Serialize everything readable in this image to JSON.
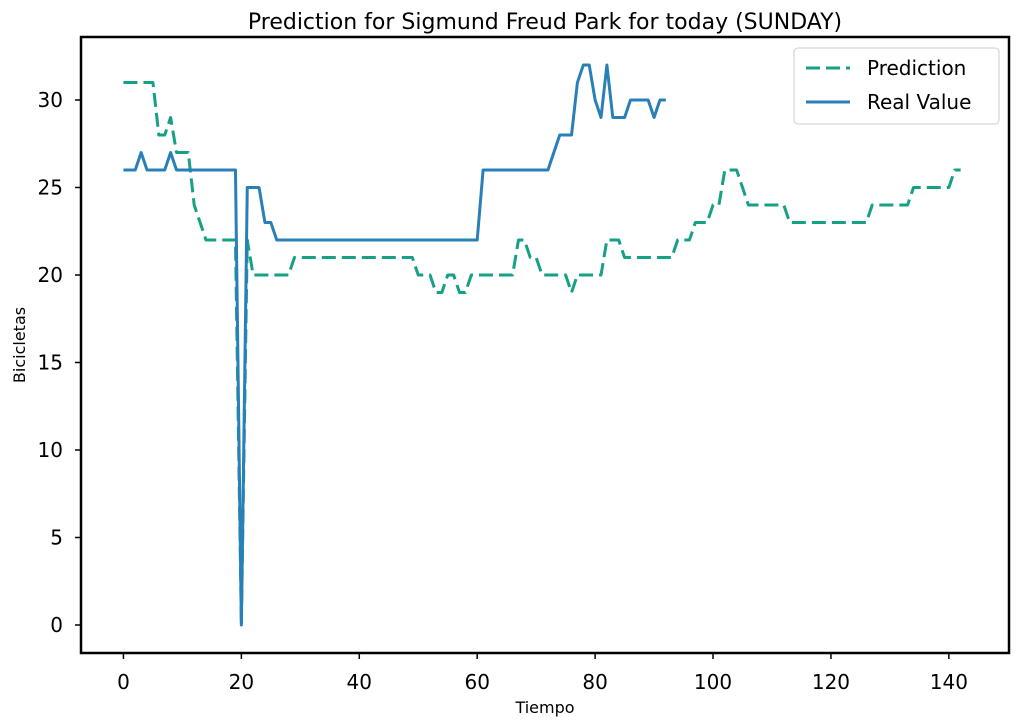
{
  "chart_data": {
    "type": "line",
    "title": "Prediction for Sigmund Freud Park for today (SUNDAY)",
    "xlabel": "Tiempo",
    "ylabel": "Bicicletas",
    "xlim": [
      -7.2,
      150.2
    ],
    "ylim": [
      -1.6,
      33.6
    ],
    "xticks": [
      0,
      20,
      40,
      60,
      80,
      100,
      120,
      140
    ],
    "yticks": [
      0,
      5,
      10,
      15,
      20,
      25,
      30
    ],
    "grid": false,
    "legend_position": "top-right",
    "series": [
      {
        "name": "Prediction",
        "color": "#16a085",
        "style": "dashed",
        "x": [
          0,
          1,
          2,
          3,
          4,
          5,
          6,
          7,
          8,
          9,
          10,
          11,
          12,
          13,
          14,
          15,
          16,
          17,
          18,
          19,
          20,
          21,
          22,
          23,
          24,
          25,
          26,
          27,
          28,
          29,
          30,
          31,
          32,
          33,
          34,
          35,
          36,
          37,
          38,
          39,
          40,
          41,
          42,
          43,
          44,
          45,
          46,
          47,
          48,
          49,
          50,
          51,
          52,
          53,
          54,
          55,
          56,
          57,
          58,
          59,
          60,
          61,
          62,
          63,
          64,
          65,
          66,
          67,
          68,
          69,
          70,
          71,
          72,
          73,
          74,
          75,
          76,
          77,
          78,
          79,
          80,
          81,
          82,
          83,
          84,
          85,
          86,
          87,
          88,
          89,
          90,
          91,
          92,
          93,
          94,
          95,
          96,
          97,
          98,
          99,
          100,
          101,
          102,
          103,
          104,
          105,
          106,
          107,
          108,
          109,
          110,
          111,
          112,
          113,
          114,
          115,
          116,
          117,
          118,
          119,
          120,
          121,
          122,
          123,
          124,
          125,
          126,
          127,
          128,
          129,
          130,
          131,
          132,
          133,
          134,
          135,
          136,
          137,
          138,
          139,
          140,
          141,
          142
        ],
        "values": [
          31,
          31,
          31,
          31,
          31,
          31,
          28,
          28,
          29,
          27,
          27,
          27,
          24,
          23,
          22,
          22,
          22,
          22,
          22,
          22,
          0,
          22,
          20,
          20,
          20,
          20,
          20,
          20,
          20,
          21,
          21,
          21,
          21,
          21,
          21,
          21,
          21,
          21,
          21,
          21,
          21,
          21,
          21,
          21,
          21,
          21,
          21,
          21,
          21,
          21,
          20,
          20,
          20,
          19,
          19,
          20,
          20,
          19,
          19,
          20,
          20,
          20,
          20,
          20,
          20,
          20,
          20,
          22,
          22,
          21,
          21,
          20,
          20,
          20,
          20,
          20,
          19,
          20,
          20,
          20,
          20,
          20,
          22,
          22,
          22,
          21,
          21,
          21,
          21,
          21,
          21,
          21,
          21,
          21,
          22,
          22,
          22,
          23,
          23,
          23,
          24,
          24,
          26,
          26,
          26,
          25,
          24,
          24,
          24,
          24,
          24,
          24,
          24,
          23,
          23,
          23,
          23,
          23,
          23,
          23,
          23,
          23,
          23,
          23,
          23,
          23,
          23,
          24,
          24,
          24,
          24,
          24,
          24,
          24,
          25,
          25,
          25,
          25,
          25,
          25,
          25,
          26,
          26
        ]
      },
      {
        "name": "Real Value",
        "color": "#2980b9",
        "style": "solid",
        "x": [
          0,
          1,
          2,
          3,
          4,
          5,
          6,
          7,
          8,
          9,
          10,
          11,
          12,
          13,
          14,
          15,
          16,
          17,
          18,
          19,
          20,
          21,
          22,
          23,
          24,
          25,
          26,
          27,
          28,
          29,
          30,
          31,
          32,
          33,
          34,
          35,
          36,
          37,
          38,
          39,
          40,
          41,
          42,
          43,
          44,
          45,
          46,
          47,
          48,
          49,
          50,
          51,
          52,
          53,
          54,
          55,
          56,
          57,
          58,
          59,
          60,
          61,
          62,
          63,
          64,
          65,
          66,
          67,
          68,
          69,
          70,
          71,
          72,
          73,
          74,
          75,
          76,
          77,
          78,
          79,
          80,
          81,
          82,
          83,
          84,
          85,
          86,
          87,
          88,
          89,
          90,
          91,
          92
        ],
        "values": [
          26,
          26,
          26,
          27,
          26,
          26,
          26,
          26,
          27,
          26,
          26,
          26,
          26,
          26,
          26,
          26,
          26,
          26,
          26,
          26,
          0,
          25,
          25,
          25,
          23,
          23,
          22,
          22,
          22,
          22,
          22,
          22,
          22,
          22,
          22,
          22,
          22,
          22,
          22,
          22,
          22,
          22,
          22,
          22,
          22,
          22,
          22,
          22,
          22,
          22,
          22,
          22,
          22,
          22,
          22,
          22,
          22,
          22,
          22,
          22,
          22,
          26,
          26,
          26,
          26,
          26,
          26,
          26,
          26,
          26,
          26,
          26,
          26,
          27,
          28,
          28,
          28,
          31,
          32,
          32,
          30,
          29,
          32,
          29,
          29,
          29,
          30,
          30,
          30,
          30,
          29,
          30,
          30
        ]
      }
    ]
  }
}
